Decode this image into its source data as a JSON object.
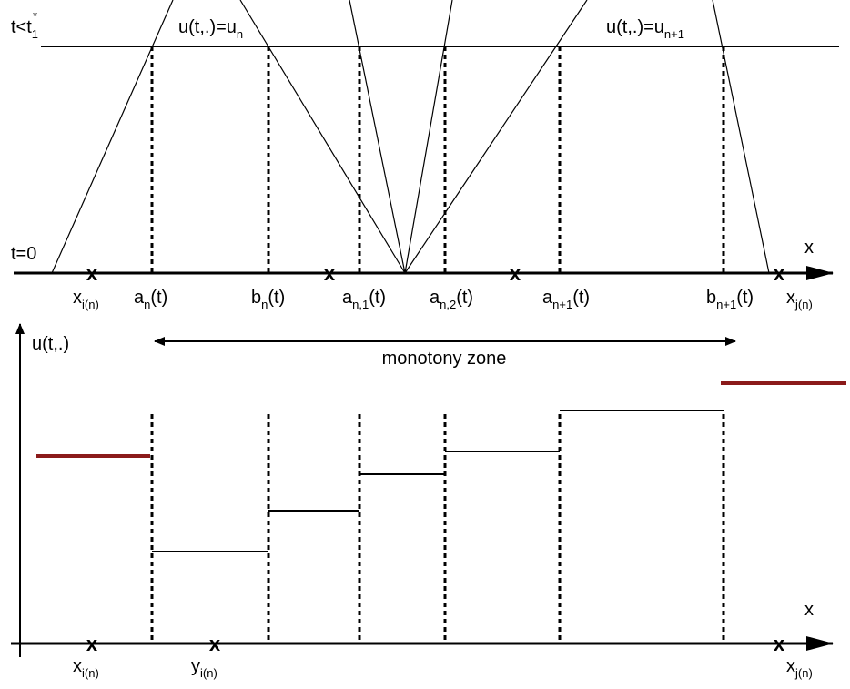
{
  "top_panel": {
    "time_labels": [
      {
        "text": "t<t",
        "sub": "1",
        "sup": "*"
      },
      {
        "text": "t=0"
      }
    ],
    "state_labels": [
      {
        "text": "u(t,.)=u",
        "sub": "n"
      },
      {
        "text": "u(t,.)=u",
        "sub": "n+1"
      }
    ],
    "axis_label": "x",
    "markers": [
      "x",
      "x",
      "x",
      "x"
    ],
    "point_labels": [
      {
        "text": "x",
        "sub": "i(n)"
      },
      {
        "text": "a",
        "sub": "n",
        "tail": "(t)"
      },
      {
        "text": "b",
        "sub": "n",
        "tail": "(t)"
      },
      {
        "text": "a",
        "sub": "n,1",
        "tail": "(t)"
      },
      {
        "text": "a",
        "sub": "n,2",
        "tail": "(t)"
      },
      {
        "text": "a",
        "sub": "n+1",
        "tail": "(t)"
      },
      {
        "text": "b",
        "sub": "n+1",
        "tail": "(t)"
      },
      {
        "text": "x",
        "sub": "j(n)"
      }
    ]
  },
  "bottom_panel": {
    "y_axis_label": "u(t,.)",
    "x_axis_label": "x",
    "zone_label": "monotony zone",
    "markers": [
      "x",
      "x",
      "x"
    ],
    "point_labels": [
      {
        "text": "x",
        "sub": "i(n)"
      },
      {
        "text": "y",
        "sub": "i(n)"
      },
      {
        "text": "x",
        "sub": "j(n)"
      }
    ]
  }
}
